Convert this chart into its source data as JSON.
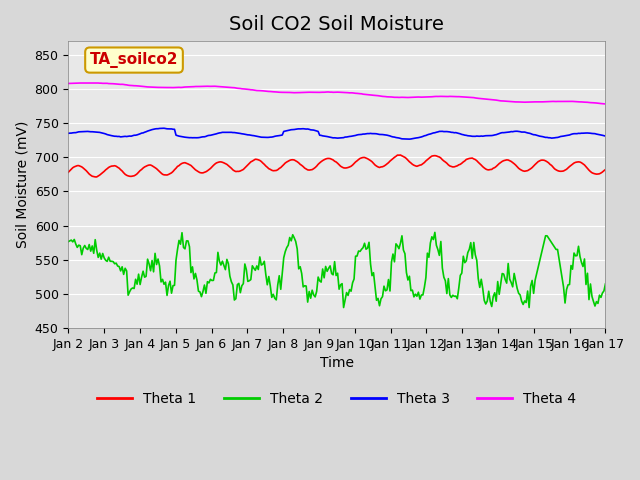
{
  "title": "Soil CO2 Soil Moisture",
  "xlabel": "Time",
  "ylabel": "Soil Moisture (mV)",
  "ylim": [
    450,
    870
  ],
  "yticks": [
    450,
    500,
    550,
    600,
    650,
    700,
    750,
    800,
    850
  ],
  "annotation_text": "TA_soilco2",
  "annotation_bg": "#ffffcc",
  "annotation_border": "#cc9900",
  "annotation_color": "#cc0000",
  "legend_labels": [
    "Theta 1",
    "Theta 2",
    "Theta 3",
    "Theta 4"
  ],
  "line_colors": [
    "#ff0000",
    "#00cc00",
    "#0000ff",
    "#ff00ff"
  ],
  "background_color": "#e8e8e8",
  "plot_bg": "#e8e8e8",
  "n_points": 360,
  "x_start": 2,
  "x_end": 17,
  "xtick_positions": [
    2,
    3,
    4,
    5,
    6,
    7,
    8,
    9,
    10,
    11,
    12,
    13,
    14,
    15,
    16,
    17
  ],
  "xtick_labels": [
    "Jan 2",
    "Jan 3",
    "Jan 4",
    "Jan 5",
    "Jan 6",
    "Jan 7",
    "Jan 8",
    "Jan 9",
    "Jan 10",
    "Jan 11",
    "Jan 12",
    "Jan 13",
    "Jan 14",
    "Jan 15",
    "Jan 16",
    "Jan 17"
  ],
  "title_fontsize": 14,
  "label_fontsize": 10,
  "tick_fontsize": 9
}
